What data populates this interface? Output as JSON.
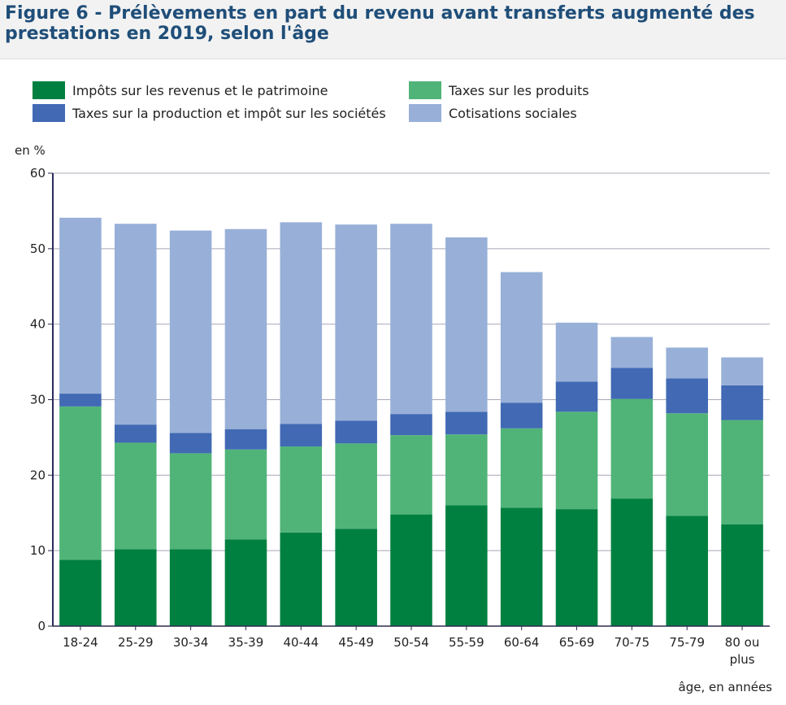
{
  "title": "Figure 6 - Prélèvements en part du revenu avant transferts augmenté des prestations en 2019, selon l'âge",
  "legend": [
    {
      "label": "Impôts sur les revenus et le patrimoine",
      "color": "#008040"
    },
    {
      "label": "Taxes sur les produits",
      "color": "#50b478"
    },
    {
      "label": "Taxes sur la production et impôt sur les sociétés",
      "color": "#4169b4"
    },
    {
      "label": "Cotisations sociales",
      "color": "#98b0d8"
    }
  ],
  "chart_data": {
    "type": "bar",
    "stacked": true,
    "title": "Figure 6 - Prélèvements en part du revenu avant transferts augmenté des prestations en 2019, selon l'âge",
    "ylabel": "en %",
    "xlabel": "âge, en années",
    "ylim": [
      0,
      60
    ],
    "yticks": [
      0,
      10,
      20,
      30,
      40,
      50,
      60
    ],
    "grid": true,
    "legend_position": "top",
    "categories": [
      "18-24",
      "25-29",
      "30-34",
      "35-39",
      "40-44",
      "45-49",
      "50-54",
      "55-59",
      "60-64",
      "65-69",
      "70-75",
      "75-79",
      "80 ou plus"
    ],
    "series": [
      {
        "name": "Impôts sur les revenus et le patrimoine",
        "color": "#008040",
        "values": [
          8.8,
          10.2,
          10.2,
          11.5,
          12.4,
          12.9,
          14.8,
          16.0,
          15.7,
          15.5,
          16.9,
          14.6,
          13.5
        ]
      },
      {
        "name": "Taxes sur les produits",
        "color": "#50b478",
        "values": [
          20.3,
          14.1,
          12.7,
          11.9,
          11.4,
          11.3,
          10.5,
          9.4,
          10.5,
          12.9,
          13.2,
          13.6,
          13.8
        ]
      },
      {
        "name": "Taxes sur la production et impôt sur les sociétés",
        "color": "#4169b4",
        "values": [
          1.7,
          2.4,
          2.7,
          2.7,
          3.0,
          3.0,
          2.8,
          3.0,
          3.4,
          4.0,
          4.1,
          4.6,
          4.6
        ]
      },
      {
        "name": "Cotisations sociales",
        "color": "#98b0d8",
        "values": [
          23.3,
          26.6,
          26.8,
          26.5,
          26.7,
          26.0,
          25.2,
          23.1,
          17.3,
          7.8,
          4.1,
          4.1,
          3.7
        ]
      }
    ]
  }
}
